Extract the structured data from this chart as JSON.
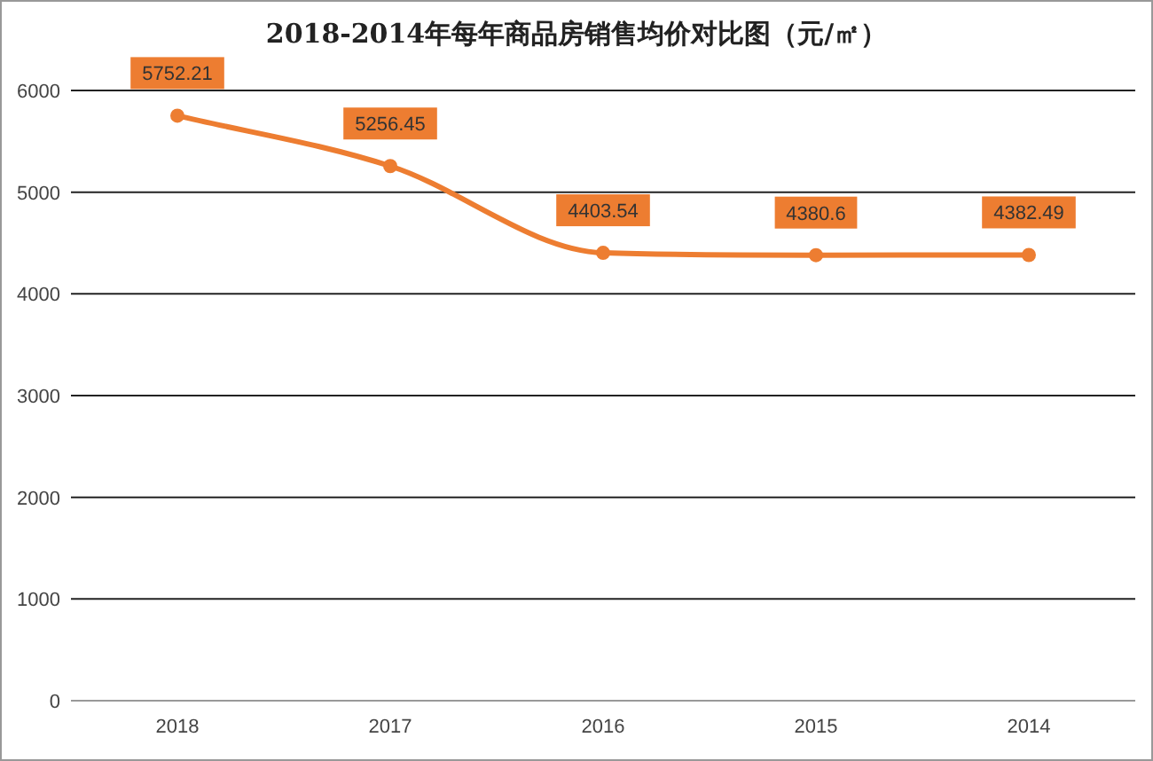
{
  "chart_data": {
    "type": "line",
    "title": "2018-2014年每年商品房销售均价对比图（元/㎡）",
    "categories": [
      "2018",
      "2017",
      "2016",
      "2015",
      "2014"
    ],
    "series": [
      {
        "color": "#ed7d31",
        "values": [
          5752.21,
          5256.45,
          4403.54,
          4380.6,
          4382.49
        ]
      }
    ],
    "ylim": [
      0,
      6000
    ],
    "yticks": [
      0,
      1000,
      2000,
      3000,
      4000,
      5000,
      6000
    ],
    "grid": "y",
    "marker": "circle",
    "line_style": "solid",
    "data_labels": true
  }
}
